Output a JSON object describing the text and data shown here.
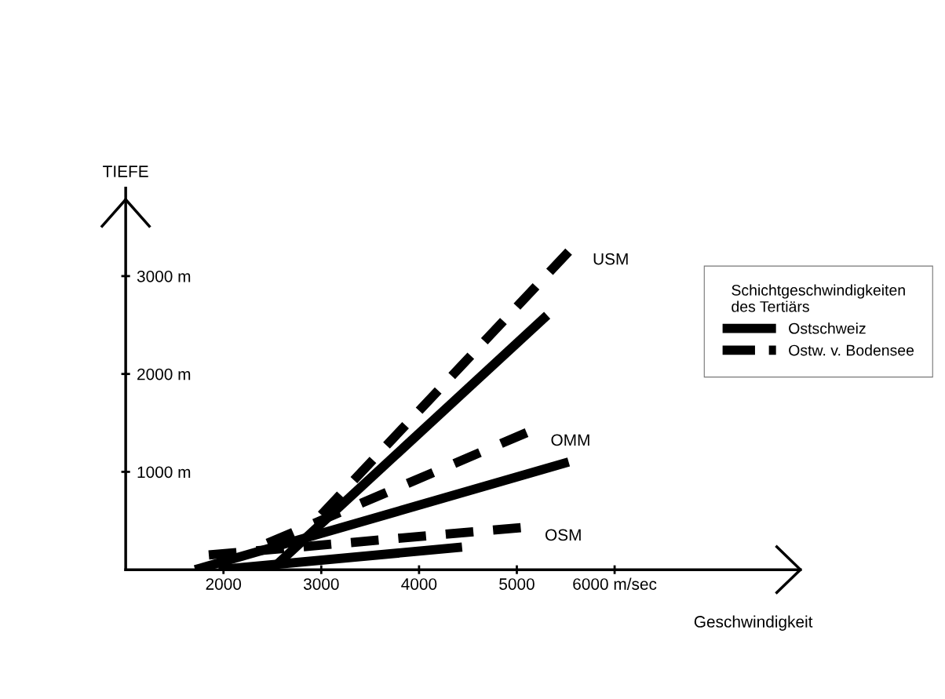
{
  "chart_data": {
    "type": "line",
    "xlabel": "Geschwindigkeit",
    "ylabel": "TIEFE",
    "legend_title": "Schichtgeschwindigkeiten\ndes Tertiärs",
    "xlim": [
      1000,
      7900
    ],
    "ylim": [
      0,
      3900
    ],
    "xticks": [
      2000,
      3000,
      4000,
      5000,
      {
        "value": 6000,
        "label": "6000 m/sec"
      }
    ],
    "yticks": [
      {
        "value": 1000,
        "label": "1000 m"
      },
      {
        "value": 2000,
        "label": "2000 m"
      },
      {
        "value": 3000,
        "label": "3000 m"
      }
    ],
    "grid": false,
    "legend": "right",
    "marker": "none",
    "series": [
      {
        "name": "Ostschweiz",
        "color": "#000000",
        "line_style": "solid",
        "x": [
          2490,
          5310
        ],
        "values": [
          0,
          2600
        ]
      },
      {
        "color": "#000000",
        "line_style": "solid",
        "x": [
          1710,
          5530
        ],
        "values": [
          0,
          1100
        ]
      },
      {
        "color": "#000000",
        "line_style": "solid",
        "x": [
          1950,
          4440
        ],
        "values": [
          0,
          230
        ]
      },
      {
        "name": "Ostw. v. Bodensee",
        "color": "#000000",
        "line_style": "dashed",
        "x": [
          3000,
          5530
        ],
        "values": [
          560,
          3250
        ]
      },
      {
        "color": "#000000",
        "line_style": "dashed",
        "x": [
          2450,
          5100
        ],
        "values": [
          270,
          1400
        ]
      },
      {
        "color": "#000000",
        "line_style": "dashed",
        "x": [
          1850,
          5040
        ],
        "values": [
          150,
          430
        ]
      }
    ],
    "annotations": [
      {
        "text": "USM",
        "x": 5530,
        "y": 3250
      },
      {
        "text": "OMM",
        "x": 5100,
        "y": 1400
      },
      {
        "text": "OSM",
        "x": 5040,
        "y": 430
      }
    ]
  }
}
